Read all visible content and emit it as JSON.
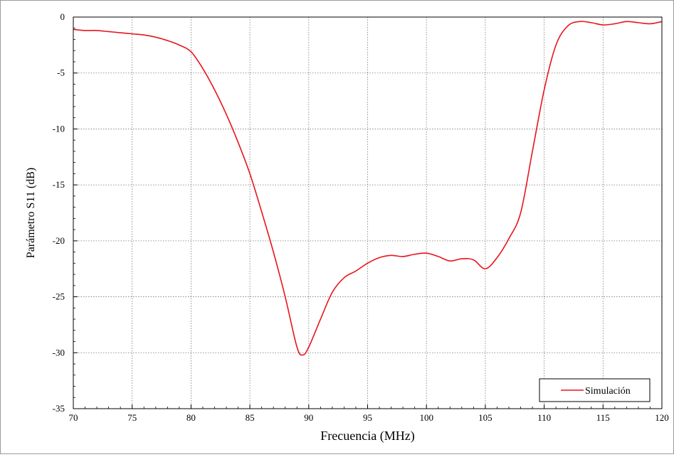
{
  "chart_data": {
    "type": "line",
    "title": "",
    "xlabel": "Frecuencia (MHz)",
    "ylabel": "Parámetro S11 (dB)",
    "xlim": [
      70,
      120
    ],
    "ylim": [
      -35,
      0
    ],
    "xticks": [
      70,
      75,
      80,
      85,
      90,
      95,
      100,
      105,
      110,
      115,
      120
    ],
    "yticks": [
      0,
      -5,
      -10,
      -15,
      -20,
      -25,
      -30,
      -35
    ],
    "grid": true,
    "legend_position": "bottom-right",
    "series": [
      {
        "name": "Simulación",
        "color": "#e8141c",
        "x": [
          70,
          71,
          72,
          73,
          74,
          75,
          76,
          77,
          78,
          79,
          80,
          81,
          82,
          83,
          84,
          85,
          86,
          87,
          88,
          89,
          89.5,
          90,
          91,
          92,
          93,
          94,
          95,
          96,
          97,
          98,
          99,
          100,
          101,
          102,
          103,
          104,
          105,
          106,
          107,
          108,
          109,
          110,
          111,
          112,
          113,
          114,
          115,
          116,
          117,
          118,
          119,
          120
        ],
        "y": [
          -1.1,
          -1.2,
          -1.2,
          -1.3,
          -1.4,
          -1.5,
          -1.6,
          -1.8,
          -2.1,
          -2.5,
          -3.1,
          -4.6,
          -6.5,
          -8.7,
          -11.2,
          -14.0,
          -17.4,
          -21.0,
          -25.0,
          -29.5,
          -30.2,
          -29.5,
          -27.0,
          -24.6,
          -23.3,
          -22.7,
          -22.0,
          -21.5,
          -21.3,
          -21.4,
          -21.2,
          -21.1,
          -21.4,
          -21.8,
          -21.6,
          -21.7,
          -22.5,
          -21.5,
          -19.8,
          -17.5,
          -12.0,
          -6.5,
          -2.5,
          -0.8,
          -0.4,
          -0.5,
          -0.7,
          -0.6,
          -0.4,
          -0.5,
          -0.6,
          -0.4
        ]
      }
    ]
  }
}
